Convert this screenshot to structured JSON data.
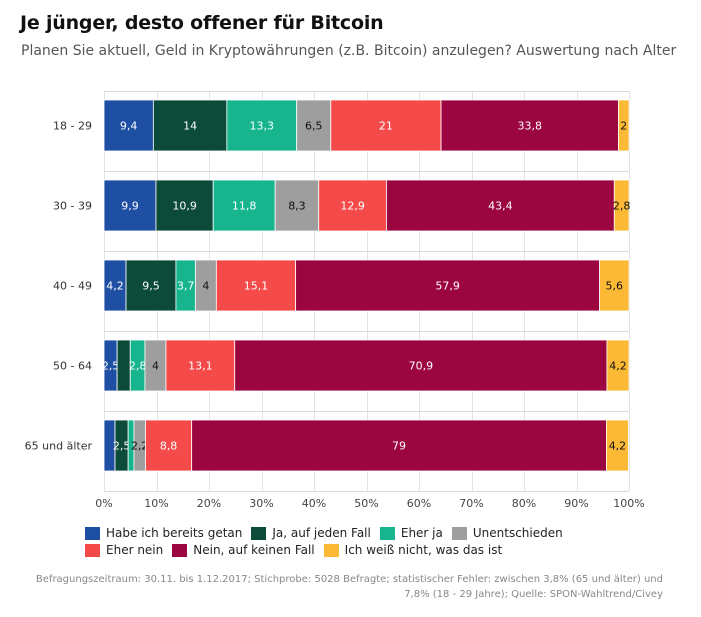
{
  "title": "Je jünger, desto offener für Bitcoin",
  "subtitle": "Planen Sie aktuell, Geld in Kryptowährungen (z.B. Bitcoin) anzulegen? Auswertung nach Alter",
  "footnote": {
    "line1": "Befragungszeitraum: 30.11. bis 1.12.2017; Stichprobe: 5028 Befragte; statistischer Fehler: zwischen 3,8% (65 und älter) und",
    "line2": "7,8% (18 - 29 Jahre); Quelle: SPON-Wahltrend/Civey"
  },
  "chart_data": {
    "type": "bar",
    "orientation": "horizontal",
    "stacked": true,
    "categories": [
      "18 - 29",
      "30 - 39",
      "40 - 49",
      "50 - 64",
      "65 und älter"
    ],
    "series": [
      {
        "name": "Habe ich bereits getan",
        "color": "#1f4fa3",
        "values": [
          9.4,
          9.9,
          4.2,
          2.5,
          2.1
        ],
        "labels": [
          "9,4",
          "9,9",
          "4,2",
          "2,5",
          ""
        ]
      },
      {
        "name": "Ja, auf jeden Fall",
        "color": "#0c4a3a",
        "values": [
          14,
          10.9,
          9.5,
          2.5,
          2.5
        ],
        "labels": [
          "14",
          "10,9",
          "9,5",
          "",
          "2,5"
        ]
      },
      {
        "name": "Eher ja",
        "color": "#17b58e",
        "values": [
          13.3,
          11.8,
          3.7,
          2.8,
          1.1
        ],
        "labels": [
          "13,3",
          "11,8",
          "3,7",
          "2,8",
          ""
        ]
      },
      {
        "name": "Unentschieden",
        "color": "#9e9e9e",
        "values": [
          6.5,
          8.3,
          4,
          4,
          2.2
        ],
        "labels": [
          "6,5",
          "8,3",
          "4",
          "4",
          "2,2"
        ]
      },
      {
        "name": "Eher nein",
        "color": "#f44a4a",
        "values": [
          21,
          12.9,
          15.1,
          13.1,
          8.8
        ],
        "labels": [
          "21",
          "12,9",
          "15,1",
          "13,1",
          "8,8"
        ]
      },
      {
        "name": "Nein, auf keinen Fall",
        "color": "#9c0640",
        "values": [
          33.8,
          43.4,
          57.9,
          70.9,
          79
        ],
        "labels": [
          "33,8",
          "43,4",
          "57,9",
          "70,9",
          "79"
        ]
      },
      {
        "name": "Ich weiß nicht, was das ist",
        "color": "#fcb935",
        "values": [
          2,
          2.8,
          5.6,
          4.2,
          4.2
        ],
        "labels": [
          "2",
          "2,8",
          "5,6",
          "4,2",
          "4,2"
        ]
      }
    ],
    "xlim": [
      0,
      100
    ],
    "x_ticks": [
      "0%",
      "10%",
      "20%",
      "30%",
      "40%",
      "50%",
      "60%",
      "70%",
      "80%",
      "90%",
      "100%"
    ],
    "grid": true,
    "legend_position": "bottom"
  }
}
